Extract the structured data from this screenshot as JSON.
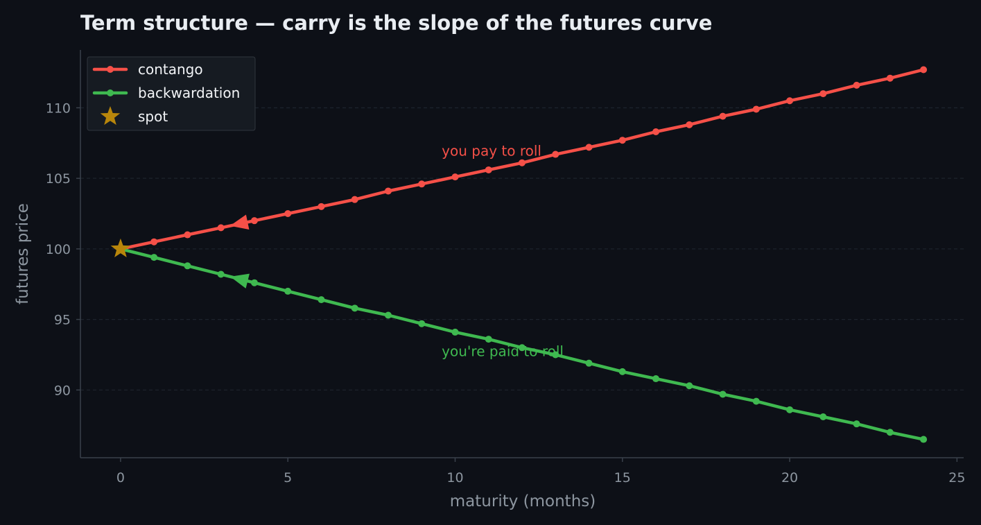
{
  "chart_data": {
    "type": "line",
    "title": "Term structure — carry is the slope of the futures curve",
    "xlabel": "maturity (months)",
    "ylabel": "futures price",
    "xlim": [
      -1.2,
      25.2
    ],
    "ylim": [
      85.2,
      114.1
    ],
    "xticks": [
      0,
      5,
      10,
      15,
      20,
      25
    ],
    "yticks": [
      90,
      95,
      100,
      105,
      110
    ],
    "grid": "horizontal dashed",
    "legend_position": "top-left",
    "x": [
      0,
      1,
      2,
      3,
      4,
      5,
      6,
      7,
      8,
      9,
      10,
      11,
      12,
      13,
      14,
      15,
      16,
      17,
      18,
      19,
      20,
      21,
      22,
      23,
      24
    ],
    "series": [
      {
        "name": "contango",
        "color": "#f55048",
        "values": [
          100.0,
          100.5,
          101.0,
          101.5,
          102.0,
          102.5,
          103.0,
          103.5,
          104.1,
          104.6,
          105.1,
          105.6,
          106.1,
          106.7,
          107.2,
          107.7,
          108.3,
          108.8,
          109.4,
          109.9,
          110.5,
          111.0,
          111.6,
          112.1,
          112.7
        ]
      },
      {
        "name": "backwardation",
        "color": "#3fb950",
        "values": [
          100.0,
          99.4,
          98.8,
          98.2,
          97.6,
          97.0,
          96.4,
          95.8,
          95.3,
          94.7,
          94.1,
          93.6,
          93.0,
          92.5,
          91.9,
          91.3,
          90.8,
          90.3,
          89.7,
          89.2,
          88.6,
          88.1,
          87.6,
          87.0,
          86.5
        ]
      }
    ],
    "spot": {
      "name": "spot",
      "x": 0,
      "y": 100.0,
      "color": "#b8860b"
    },
    "arrows": [
      {
        "series": "contango",
        "from": [
          4,
          102.0
        ],
        "to": [
          3,
          101.5
        ]
      },
      {
        "series": "backwardation",
        "from": [
          4,
          97.6
        ],
        "to": [
          3,
          98.2
        ]
      }
    ],
    "annotations": [
      {
        "text": "you pay to roll",
        "x": 9.6,
        "y": 106.6,
        "color": "#f55048"
      },
      {
        "text": "you're paid to roll",
        "x": 9.6,
        "y": 92.4,
        "color": "#3fb950"
      }
    ]
  }
}
